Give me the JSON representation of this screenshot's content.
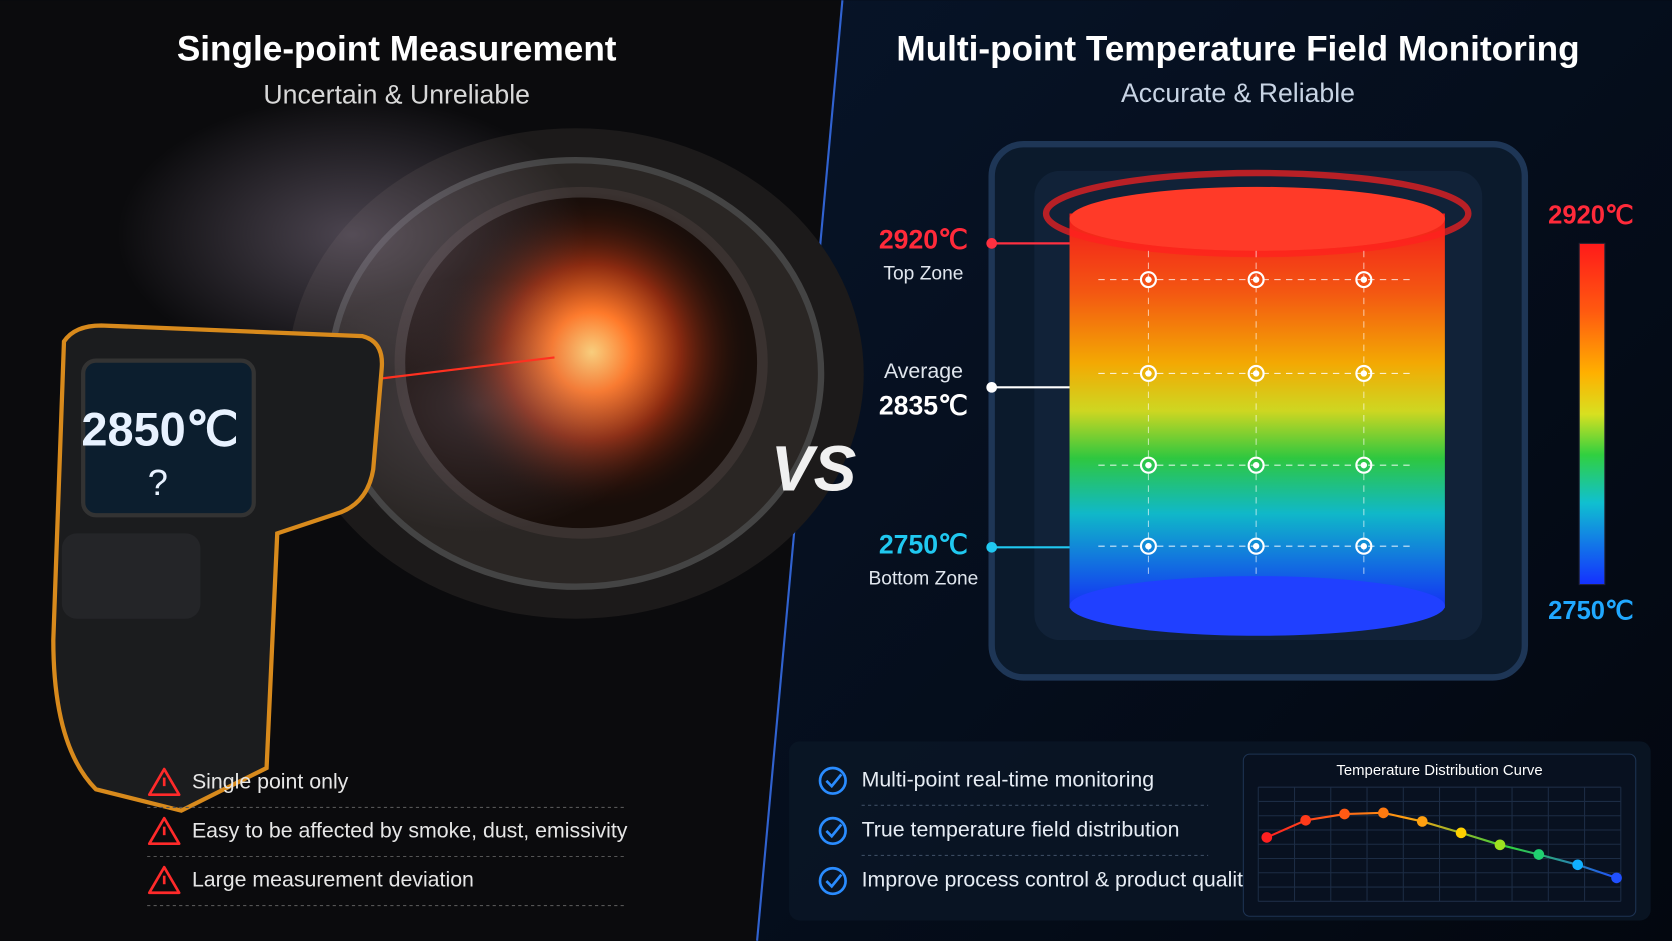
{
  "left": {
    "title": "Single-point Measurement",
    "subtitle": "Uncertain & Unreliable",
    "reading": "2850℃",
    "reading_note": "?",
    "issues": [
      "Single point only",
      "Easy to be affected by smoke, dust, emissivity",
      "Large measurement deviation"
    ]
  },
  "vs": "VS",
  "right": {
    "title": "Multi-point Temperature Field Monitoring",
    "subtitle": "Accurate & Reliable",
    "zones": [
      {
        "value": "2920℃",
        "label": "Top Zone"
      },
      {
        "label": "Average",
        "value": "2835℃"
      },
      {
        "value": "2750℃",
        "label": "Bottom Zone"
      }
    ],
    "scale": {
      "max": "2920℃",
      "min": "2750℃"
    },
    "benefits": [
      "Multi-point real-time monitoring",
      "True temperature field distribution",
      "Improve process control & product quality"
    ],
    "curve": {
      "title": "Temperature Distribution Curve",
      "values": [
        2862,
        2892,
        2903,
        2905,
        2890,
        2870,
        2849,
        2832,
        2814,
        2791
      ],
      "colors": [
        "#ff2020",
        "#ff3a1a",
        "#ff5a14",
        "#ff7a10",
        "#ffa010",
        "#ffd000",
        "#9ee020",
        "#20d070",
        "#10b0ff",
        "#2050ff"
      ],
      "ylim": [
        2750,
        2950
      ]
    }
  }
}
